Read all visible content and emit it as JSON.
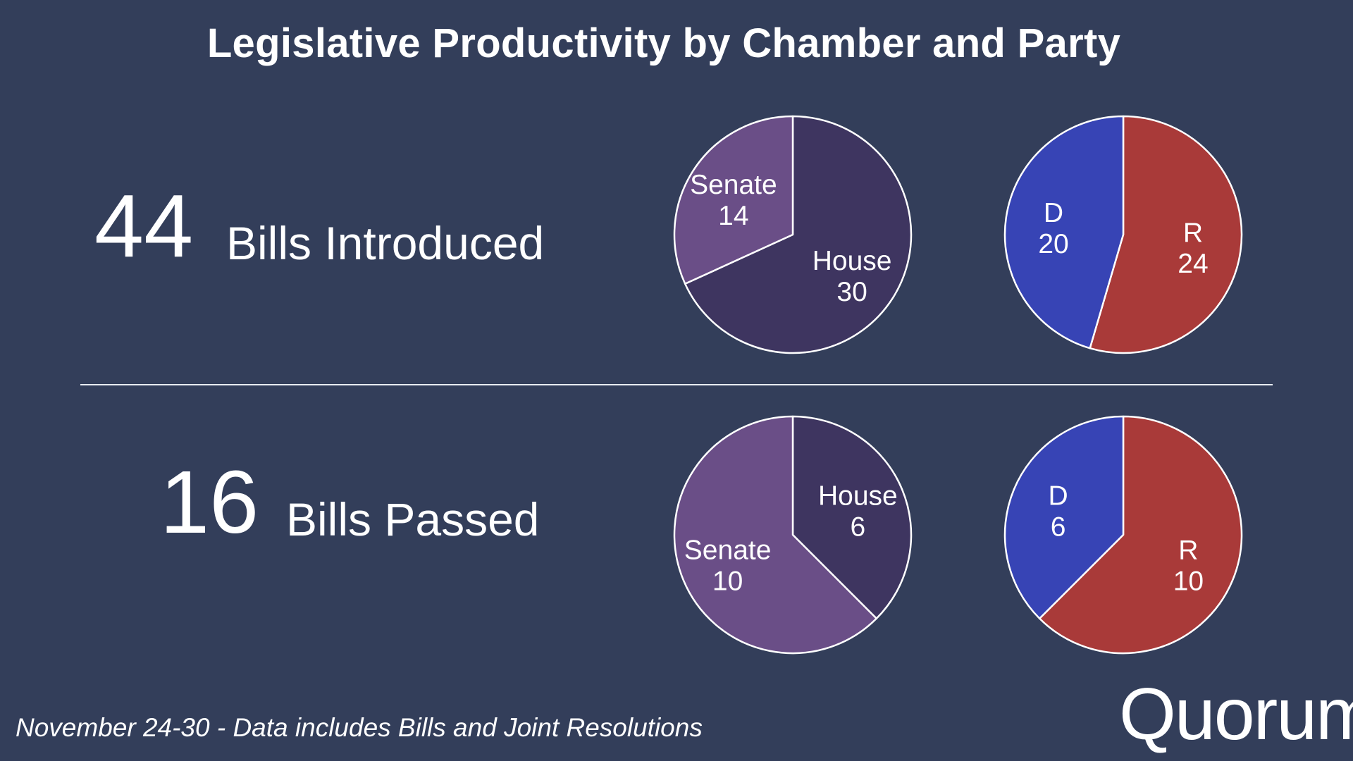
{
  "title": "Legislative Productivity by Chamber and Party",
  "rows": [
    {
      "count": "44",
      "label": "Bills Introduced"
    },
    {
      "count": "16",
      "label": "Bills Passed"
    }
  ],
  "footnote": "November 24-30 - Data includes Bills and Joint Resolutions",
  "logo_text": "Quorum",
  "colors": {
    "background": "#333e5a",
    "house": "#3e3560",
    "senate": "#6a4e87",
    "democrat": "#3744b5",
    "republican": "#a93a39"
  },
  "chart_data": [
    {
      "type": "pie",
      "title": "",
      "slices": [
        {
          "label": "House",
          "value": 30,
          "color": "#3e3560"
        },
        {
          "label": "Senate",
          "value": 14,
          "color": "#6a4e87"
        }
      ]
    },
    {
      "type": "pie",
      "title": "",
      "slices": [
        {
          "label": "R",
          "value": 24,
          "color": "#a93a39"
        },
        {
          "label": "D",
          "value": 20,
          "color": "#3744b5"
        }
      ]
    },
    {
      "type": "pie",
      "title": "",
      "slices": [
        {
          "label": "House",
          "value": 6,
          "color": "#3e3560"
        },
        {
          "label": "Senate",
          "value": 10,
          "color": "#6a4e87"
        }
      ]
    },
    {
      "type": "pie",
      "title": "",
      "slices": [
        {
          "label": "R",
          "value": 10,
          "color": "#a93a39"
        },
        {
          "label": "D",
          "value": 6,
          "color": "#3744b5"
        }
      ]
    }
  ]
}
